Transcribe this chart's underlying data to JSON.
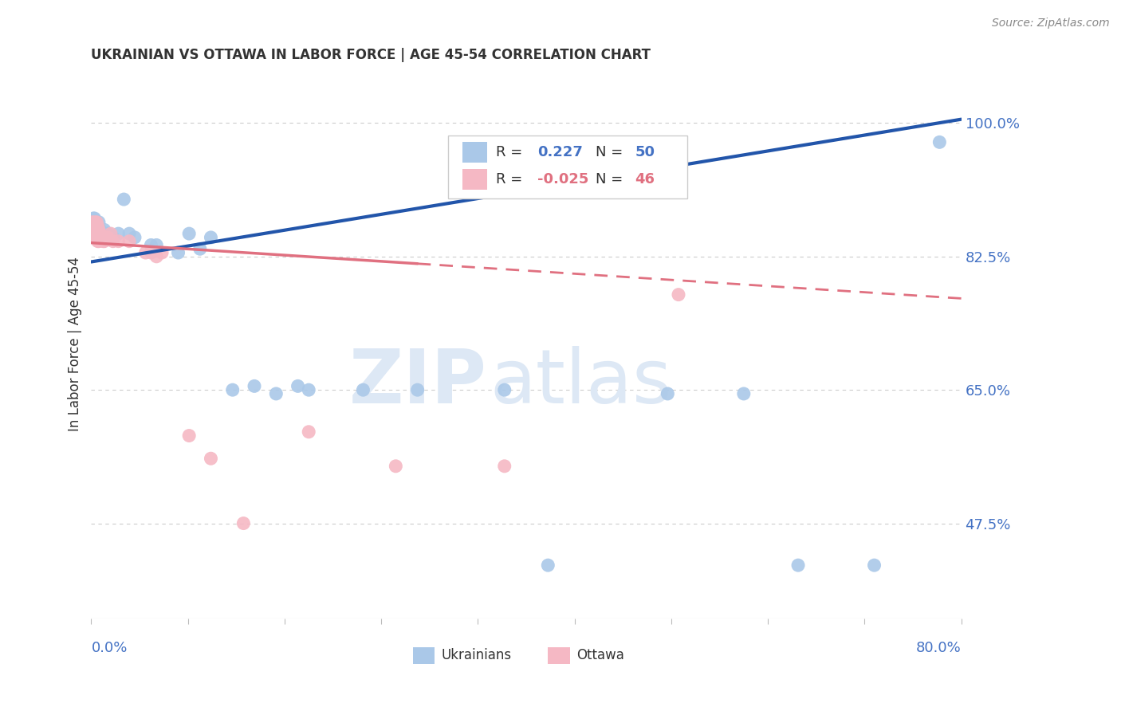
{
  "title": "UKRAINIAN VS OTTAWA IN LABOR FORCE | AGE 45-54 CORRELATION CHART",
  "source": "Source: ZipAtlas.com",
  "ylabel": "In Labor Force | Age 45-54",
  "ytick_labels": [
    "47.5%",
    "65.0%",
    "82.5%",
    "100.0%"
  ],
  "ytick_values": [
    0.475,
    0.65,
    0.825,
    1.0
  ],
  "xlim": [
    0.0,
    0.8
  ],
  "ylim": [
    0.35,
    1.07
  ],
  "blue_color": "#aac8e8",
  "pink_color": "#f5b8c4",
  "trend_blue_color": "#2255aa",
  "trend_pink_color": "#e07080",
  "background_color": "#ffffff",
  "grid_color": "#cccccc",
  "label_color": "#4472c4",
  "title_color": "#333333",
  "source_color": "#888888",
  "watermark_zip_color": "#dde8f5",
  "watermark_atlas_color": "#dde8f5",
  "blue_x": [
    0.001,
    0.002,
    0.002,
    0.003,
    0.003,
    0.003,
    0.004,
    0.004,
    0.004,
    0.005,
    0.005,
    0.005,
    0.006,
    0.006,
    0.006,
    0.007,
    0.007,
    0.007,
    0.008,
    0.008,
    0.009,
    0.01,
    0.012,
    0.014,
    0.016,
    0.02,
    0.025,
    0.03,
    0.035,
    0.04,
    0.055,
    0.06,
    0.08,
    0.09,
    0.1,
    0.11,
    0.13,
    0.15,
    0.17,
    0.19,
    0.2,
    0.25,
    0.3,
    0.38,
    0.42,
    0.53,
    0.6,
    0.65,
    0.72,
    0.78
  ],
  "blue_y": [
    0.87,
    0.86,
    0.875,
    0.855,
    0.865,
    0.875,
    0.86,
    0.87,
    0.85,
    0.865,
    0.87,
    0.855,
    0.86,
    0.865,
    0.85,
    0.86,
    0.855,
    0.87,
    0.86,
    0.85,
    0.855,
    0.85,
    0.86,
    0.855,
    0.855,
    0.85,
    0.855,
    0.9,
    0.855,
    0.85,
    0.84,
    0.84,
    0.83,
    0.855,
    0.835,
    0.85,
    0.65,
    0.655,
    0.645,
    0.655,
    0.65,
    0.65,
    0.65,
    0.65,
    0.42,
    0.645,
    0.645,
    0.42,
    0.42,
    0.975
  ],
  "pink_x": [
    0.001,
    0.001,
    0.002,
    0.002,
    0.003,
    0.003,
    0.003,
    0.003,
    0.003,
    0.004,
    0.004,
    0.004,
    0.005,
    0.005,
    0.005,
    0.005,
    0.006,
    0.006,
    0.006,
    0.006,
    0.007,
    0.007,
    0.007,
    0.008,
    0.008,
    0.009,
    0.01,
    0.011,
    0.012,
    0.013,
    0.015,
    0.018,
    0.02,
    0.025,
    0.035,
    0.05,
    0.055,
    0.06,
    0.065,
    0.09,
    0.11,
    0.14,
    0.2,
    0.28,
    0.38,
    0.54
  ],
  "pink_y": [
    0.87,
    0.855,
    0.865,
    0.855,
    0.87,
    0.86,
    0.855,
    0.85,
    0.86,
    0.865,
    0.855,
    0.86,
    0.87,
    0.855,
    0.86,
    0.85,
    0.865,
    0.855,
    0.86,
    0.845,
    0.855,
    0.86,
    0.845,
    0.855,
    0.85,
    0.85,
    0.85,
    0.845,
    0.845,
    0.85,
    0.85,
    0.855,
    0.845,
    0.845,
    0.845,
    0.83,
    0.83,
    0.825,
    0.83,
    0.59,
    0.56,
    0.475,
    0.595,
    0.55,
    0.55,
    0.775
  ],
  "trend_blue_x0": 0.0,
  "trend_blue_y0": 0.818,
  "trend_blue_x1": 0.8,
  "trend_blue_y1": 1.005,
  "trend_pink_x0": 0.0,
  "trend_pink_y0": 0.843,
  "trend_pink_x1": 0.8,
  "trend_pink_y1": 0.77
}
